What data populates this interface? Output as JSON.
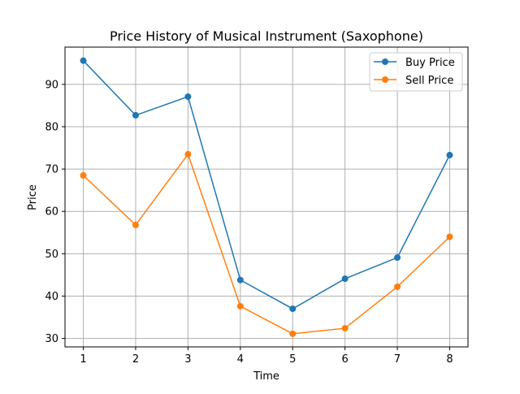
{
  "chart_data": {
    "type": "line",
    "title": "Price History of Musical Instrument (Saxophone)",
    "xlabel": "Time",
    "ylabel": "Price",
    "x": [
      1,
      2,
      3,
      4,
      5,
      6,
      7,
      8
    ],
    "xticks": [
      "1",
      "2",
      "3",
      "4",
      "5",
      "6",
      "7",
      "8"
    ],
    "yticks": [
      "30",
      "40",
      "50",
      "60",
      "70",
      "80",
      "90"
    ],
    "xlim": [
      0.65,
      8.35
    ],
    "ylim": [
      28,
      98.8
    ],
    "grid": true,
    "legend_position": "top-right",
    "series": [
      {
        "name": "Buy Price",
        "color": "#1f77b4",
        "values": [
          95.6,
          82.7,
          87.1,
          43.8,
          37.0,
          44.1,
          49.1,
          73.3
        ]
      },
      {
        "name": "Sell Price",
        "color": "#ff7f0e",
        "values": [
          68.5,
          56.8,
          73.5,
          37.6,
          31.1,
          32.4,
          42.2,
          54.0
        ]
      }
    ]
  }
}
